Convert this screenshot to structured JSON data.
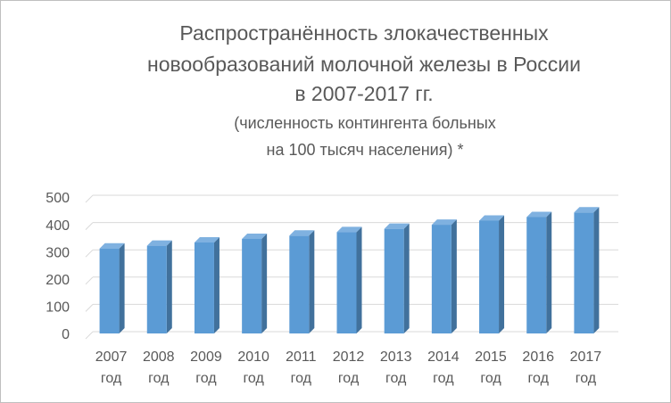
{
  "chart_data": {
    "type": "bar3d",
    "title": [
      "Распространённость злокачественных",
      "новообразований молочной железы в России",
      "в 2007-2017 гг."
    ],
    "subtitle": [
      "(численность контингента больных",
      "на 100 тысяч населения) *"
    ],
    "categories": [
      "2007 год",
      "2008 год",
      "2009 год",
      "2010 год",
      "2011 год",
      "2012 год",
      "2013 год",
      "2014 год",
      "2015 год",
      "2016 год",
      "2017 год"
    ],
    "values": [
      318,
      328,
      340,
      353,
      365,
      378,
      390,
      405,
      420,
      433,
      450
    ],
    "color": "#5b9bd5",
    "ylim": [
      0,
      500
    ],
    "yticks": [
      0,
      100,
      200,
      300,
      400,
      500
    ],
    "grid": true
  }
}
